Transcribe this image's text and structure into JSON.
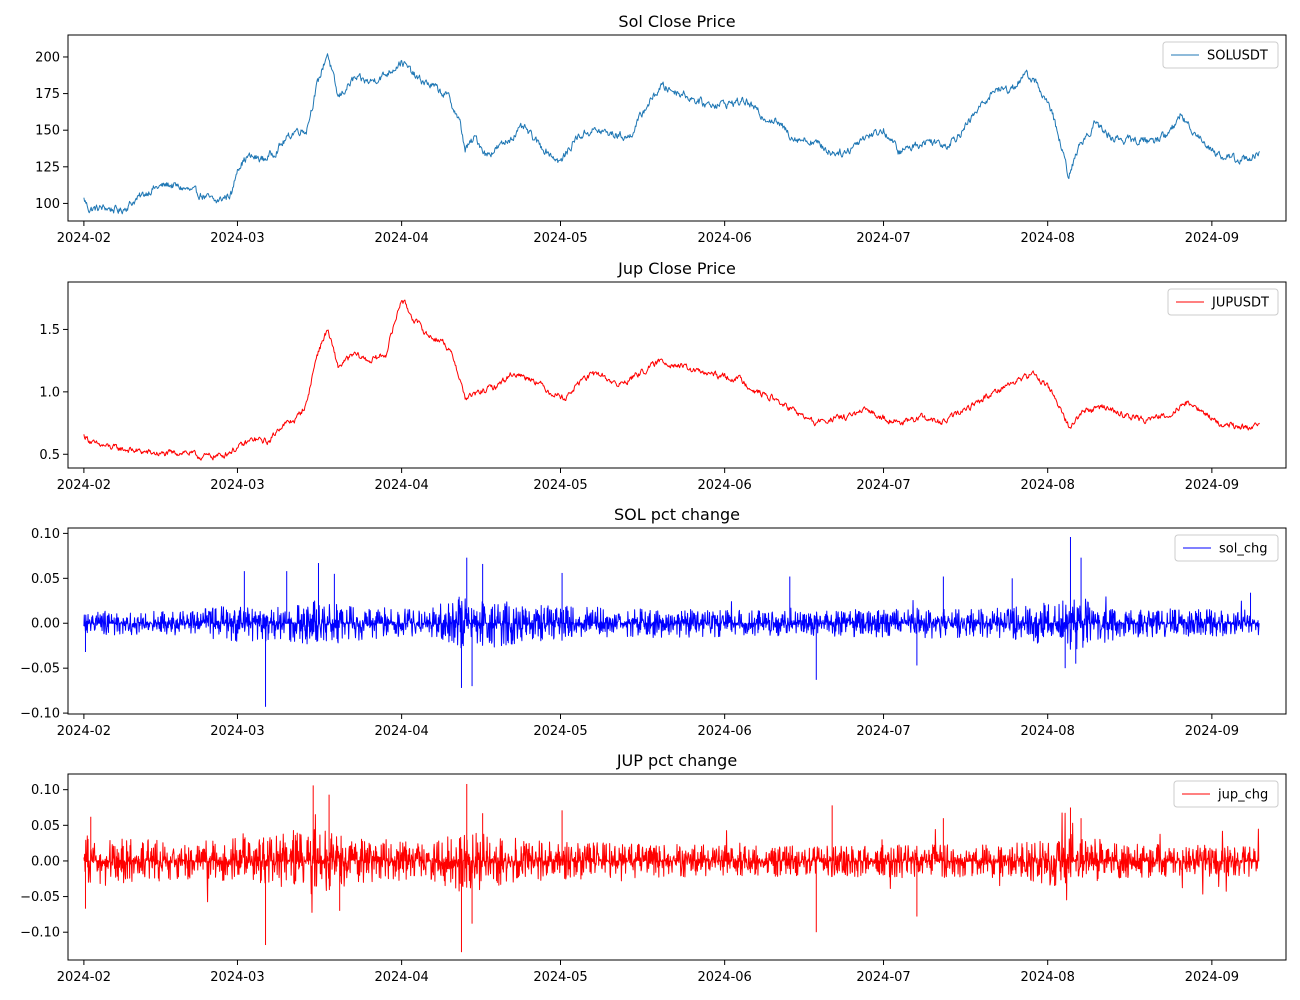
{
  "figure": {
    "background": "#ffffff"
  },
  "x_ticks": [
    "2024-02",
    "2024-03",
    "2024-04",
    "2024-05",
    "2024-06",
    "2024-07",
    "2024-08",
    "2024-09"
  ],
  "chart_data": [
    {
      "type": "line",
      "title": "Sol Close Price",
      "xlabel": "",
      "ylabel": "",
      "x_range": [
        "2024-01-29",
        "2024-09-15"
      ],
      "ylim": [
        88,
        215
      ],
      "yticks": [
        100,
        125,
        150,
        175,
        200
      ],
      "ytick_labels": [
        "100",
        "125",
        "150",
        "175",
        "200"
      ],
      "legend_position": "upper right",
      "grid": false,
      "series": [
        {
          "name": "SOLUSDT",
          "color": "#1f77b4",
          "noise": 2.2,
          "points": [
            [
              "2024-02-01",
              103
            ],
            [
              "2024-02-02",
              96
            ],
            [
              "2024-02-05",
              97
            ],
            [
              "2024-02-08",
              95
            ],
            [
              "2024-02-11",
              103
            ],
            [
              "2024-02-14",
              110
            ],
            [
              "2024-02-17",
              113
            ],
            [
              "2024-02-20",
              110
            ],
            [
              "2024-02-23",
              106
            ],
            [
              "2024-02-26",
              101
            ],
            [
              "2024-02-29",
              107
            ],
            [
              "2024-03-01",
              125
            ],
            [
              "2024-03-03",
              132
            ],
            [
              "2024-03-06",
              130
            ],
            [
              "2024-03-08",
              135
            ],
            [
              "2024-03-10",
              143
            ],
            [
              "2024-03-12",
              150
            ],
            [
              "2024-03-14",
              150
            ],
            [
              "2024-03-16",
              180
            ],
            [
              "2024-03-18",
              203
            ],
            [
              "2024-03-20",
              172
            ],
            [
              "2024-03-23",
              185
            ],
            [
              "2024-03-26",
              183
            ],
            [
              "2024-03-29",
              188
            ],
            [
              "2024-04-01",
              197
            ],
            [
              "2024-04-04",
              185
            ],
            [
              "2024-04-07",
              180
            ],
            [
              "2024-04-10",
              172
            ],
            [
              "2024-04-12",
              155
            ],
            [
              "2024-04-13",
              137
            ],
            [
              "2024-04-15",
              145
            ],
            [
              "2024-04-17",
              133
            ],
            [
              "2024-04-20",
              140
            ],
            [
              "2024-04-24",
              152
            ],
            [
              "2024-04-27",
              140
            ],
            [
              "2024-05-01",
              128
            ],
            [
              "2024-05-04",
              145
            ],
            [
              "2024-05-07",
              150
            ],
            [
              "2024-05-10",
              148
            ],
            [
              "2024-05-14",
              145
            ],
            [
              "2024-05-17",
              165
            ],
            [
              "2024-05-20",
              180
            ],
            [
              "2024-05-24",
              175
            ],
            [
              "2024-05-28",
              168
            ],
            [
              "2024-06-01",
              168
            ],
            [
              "2024-06-05",
              170
            ],
            [
              "2024-06-08",
              160
            ],
            [
              "2024-06-11",
              155
            ],
            [
              "2024-06-14",
              145
            ],
            [
              "2024-06-18",
              142
            ],
            [
              "2024-06-21",
              135
            ],
            [
              "2024-06-24",
              135
            ],
            [
              "2024-06-27",
              145
            ],
            [
              "2024-07-01",
              150
            ],
            [
              "2024-07-04",
              135
            ],
            [
              "2024-07-07",
              140
            ],
            [
              "2024-07-10",
              143
            ],
            [
              "2024-07-13",
              140
            ],
            [
              "2024-07-16",
              150
            ],
            [
              "2024-07-19",
              165
            ],
            [
              "2024-07-22",
              178
            ],
            [
              "2024-07-25",
              178
            ],
            [
              "2024-07-28",
              188
            ],
            [
              "2024-07-30",
              182
            ],
            [
              "2024-08-02",
              160
            ],
            [
              "2024-08-05",
              118
            ],
            [
              "2024-08-07",
              140
            ],
            [
              "2024-08-10",
              155
            ],
            [
              "2024-08-13",
              145
            ],
            [
              "2024-08-17",
              143
            ],
            [
              "2024-08-21",
              143
            ],
            [
              "2024-08-24",
              148
            ],
            [
              "2024-08-26",
              160
            ],
            [
              "2024-08-29",
              148
            ],
            [
              "2024-09-02",
              133
            ],
            [
              "2024-09-06",
              130
            ],
            [
              "2024-09-10",
              133
            ]
          ]
        }
      ]
    },
    {
      "type": "line",
      "title": "Jup Close Price",
      "xlabel": "",
      "ylabel": "",
      "x_range": [
        "2024-01-29",
        "2024-09-15"
      ],
      "ylim": [
        0.39,
        1.88
      ],
      "yticks": [
        0.5,
        1.0,
        1.5
      ],
      "ytick_labels": [
        "0.5",
        "1.0",
        "1.5"
      ],
      "legend_position": "upper right",
      "grid": false,
      "series": [
        {
          "name": "JUPUSDT",
          "color": "#ff0000",
          "noise": 0.02,
          "points": [
            [
              "2024-02-01",
              0.65
            ],
            [
              "2024-02-03",
              0.58
            ],
            [
              "2024-02-07",
              0.55
            ],
            [
              "2024-02-12",
              0.52
            ],
            [
              "2024-02-16",
              0.5
            ],
            [
              "2024-02-20",
              0.52
            ],
            [
              "2024-02-23",
              0.48
            ],
            [
              "2024-02-27",
              0.49
            ],
            [
              "2024-03-01",
              0.55
            ],
            [
              "2024-03-04",
              0.62
            ],
            [
              "2024-03-07",
              0.6
            ],
            [
              "2024-03-09",
              0.72
            ],
            [
              "2024-03-12",
              0.78
            ],
            [
              "2024-03-14",
              0.9
            ],
            [
              "2024-03-16",
              1.3
            ],
            [
              "2024-03-18",
              1.5
            ],
            [
              "2024-03-20",
              1.2
            ],
            [
              "2024-03-23",
              1.3
            ],
            [
              "2024-03-26",
              1.25
            ],
            [
              "2024-03-29",
              1.3
            ],
            [
              "2024-04-01",
              1.75
            ],
            [
              "2024-04-03",
              1.6
            ],
            [
              "2024-04-06",
              1.45
            ],
            [
              "2024-04-09",
              1.4
            ],
            [
              "2024-04-11",
              1.25
            ],
            [
              "2024-04-13",
              0.95
            ],
            [
              "2024-04-16",
              1.0
            ],
            [
              "2024-04-19",
              1.05
            ],
            [
              "2024-04-22",
              1.15
            ],
            [
              "2024-04-26",
              1.1
            ],
            [
              "2024-04-29",
              1.0
            ],
            [
              "2024-05-02",
              0.95
            ],
            [
              "2024-05-05",
              1.1
            ],
            [
              "2024-05-08",
              1.15
            ],
            [
              "2024-05-12",
              1.05
            ],
            [
              "2024-05-16",
              1.15
            ],
            [
              "2024-05-20",
              1.25
            ],
            [
              "2024-05-24",
              1.2
            ],
            [
              "2024-05-28",
              1.15
            ],
            [
              "2024-06-01",
              1.12
            ],
            [
              "2024-06-04",
              1.1
            ],
            [
              "2024-06-07",
              1.0
            ],
            [
              "2024-06-10",
              0.95
            ],
            [
              "2024-06-14",
              0.85
            ],
            [
              "2024-06-18",
              0.75
            ],
            [
              "2024-06-21",
              0.78
            ],
            [
              "2024-06-24",
              0.8
            ],
            [
              "2024-06-28",
              0.85
            ],
            [
              "2024-07-02",
              0.78
            ],
            [
              "2024-07-05",
              0.75
            ],
            [
              "2024-07-08",
              0.8
            ],
            [
              "2024-07-12",
              0.75
            ],
            [
              "2024-07-16",
              0.85
            ],
            [
              "2024-07-20",
              0.95
            ],
            [
              "2024-07-24",
              1.05
            ],
            [
              "2024-07-27",
              1.1
            ],
            [
              "2024-07-29",
              1.15
            ],
            [
              "2024-08-01",
              1.05
            ],
            [
              "2024-08-03",
              0.9
            ],
            [
              "2024-08-05",
              0.72
            ],
            [
              "2024-08-08",
              0.85
            ],
            [
              "2024-08-12",
              0.88
            ],
            [
              "2024-08-16",
              0.8
            ],
            [
              "2024-08-20",
              0.78
            ],
            [
              "2024-08-24",
              0.82
            ],
            [
              "2024-08-27",
              0.92
            ],
            [
              "2024-08-30",
              0.85
            ],
            [
              "2024-09-02",
              0.75
            ],
            [
              "2024-09-06",
              0.72
            ],
            [
              "2024-09-10",
              0.72
            ]
          ]
        }
      ]
    },
    {
      "type": "line",
      "title": "SOL pct change",
      "xlabel": "",
      "ylabel": "",
      "x_range": [
        "2024-01-29",
        "2024-09-15"
      ],
      "ylim": [
        -0.101,
        0.106
      ],
      "yticks": [
        -0.1,
        -0.05,
        0.0,
        0.05,
        0.1
      ],
      "ytick_labels": [
        "−0.10",
        "−0.05",
        "0.00",
        "0.05",
        "0.10"
      ],
      "legend_position": "upper right",
      "grid": false,
      "series": [
        {
          "name": "sol_chg",
          "color": "#0000ff",
          "x_start": "2024-02-01",
          "x_end": "2024-09-10",
          "base_amplitude": 0.007,
          "volatility": [
            [
              "2024-02-01",
              0.8
            ],
            [
              "2024-02-20",
              0.8
            ],
            [
              "2024-03-01",
              1.3
            ],
            [
              "2024-03-10",
              1.1
            ],
            [
              "2024-03-15",
              1.6
            ],
            [
              "2024-03-25",
              1.1
            ],
            [
              "2024-04-05",
              0.9
            ],
            [
              "2024-04-13",
              1.9
            ],
            [
              "2024-04-25",
              1.2
            ],
            [
              "2024-05-15",
              1.0
            ],
            [
              "2024-06-15",
              0.8
            ],
            [
              "2024-07-01",
              1.0
            ],
            [
              "2024-07-25",
              1.0
            ],
            [
              "2024-08-05",
              1.9
            ],
            [
              "2024-08-15",
              1.0
            ],
            [
              "2024-09-10",
              0.9
            ]
          ],
          "spikes": [
            [
              "2024-02-01",
              -0.032
            ],
            [
              "2024-03-02",
              0.058
            ],
            [
              "2024-03-06",
              -0.093
            ],
            [
              "2024-03-10",
              0.058
            ],
            [
              "2024-03-16",
              0.067
            ],
            [
              "2024-03-19",
              0.055
            ],
            [
              "2024-04-12",
              -0.072
            ],
            [
              "2024-04-13",
              0.073
            ],
            [
              "2024-04-14",
              -0.07
            ],
            [
              "2024-04-16",
              0.066
            ],
            [
              "2024-05-01",
              0.056
            ],
            [
              "2024-06-18",
              -0.063
            ],
            [
              "2024-06-13",
              0.052
            ],
            [
              "2024-07-07",
              -0.047
            ],
            [
              "2024-07-12",
              0.052
            ],
            [
              "2024-07-25",
              0.05
            ],
            [
              "2024-08-04",
              -0.05
            ],
            [
              "2024-08-05",
              0.096
            ],
            [
              "2024-08-06",
              -0.045
            ],
            [
              "2024-08-07",
              0.073
            ],
            [
              "2024-09-08",
              0.034
            ]
          ]
        }
      ]
    },
    {
      "type": "line",
      "title": "JUP pct change",
      "xlabel": "",
      "ylabel": "",
      "x_range": [
        "2024-01-29",
        "2024-09-15"
      ],
      "ylim": [
        -0.139,
        0.122
      ],
      "yticks": [
        -0.1,
        -0.05,
        0.0,
        0.05,
        0.1
      ],
      "ytick_labels": [
        "−0.10",
        "−0.05",
        "0.00",
        "0.05",
        "0.10"
      ],
      "legend_position": "upper right",
      "grid": false,
      "series": [
        {
          "name": "jup_chg",
          "color": "#ff0000",
          "x_start": "2024-02-01",
          "x_end": "2024-09-10",
          "base_amplitude": 0.011,
          "volatility": [
            [
              "2024-02-01",
              1.4
            ],
            [
              "2024-02-20",
              1.0
            ],
            [
              "2024-03-05",
              1.3
            ],
            [
              "2024-03-15",
              1.8
            ],
            [
              "2024-03-25",
              1.2
            ],
            [
              "2024-04-05",
              1.1
            ],
            [
              "2024-04-13",
              1.7
            ],
            [
              "2024-04-25",
              1.1
            ],
            [
              "2024-05-15",
              0.9
            ],
            [
              "2024-06-15",
              0.8
            ],
            [
              "2024-07-01",
              0.9
            ],
            [
              "2024-07-25",
              0.9
            ],
            [
              "2024-08-05",
              1.5
            ],
            [
              "2024-08-15",
              0.9
            ],
            [
              "2024-09-10",
              0.8
            ]
          ],
          "spikes": [
            [
              "2024-02-01",
              -0.067
            ],
            [
              "2024-02-02",
              0.062
            ],
            [
              "2024-03-06",
              -0.118
            ],
            [
              "2024-03-15",
              0.106
            ],
            [
              "2024-03-18",
              0.093
            ],
            [
              "2024-03-20",
              -0.07
            ],
            [
              "2024-04-12",
              -0.128
            ],
            [
              "2024-04-13",
              0.108
            ],
            [
              "2024-04-14",
              -0.088
            ],
            [
              "2024-04-16",
              0.067
            ],
            [
              "2024-05-01",
              0.071
            ],
            [
              "2024-06-18",
              -0.1
            ],
            [
              "2024-06-21",
              0.078
            ],
            [
              "2024-07-07",
              -0.078
            ],
            [
              "2024-07-12",
              0.06
            ],
            [
              "2024-08-05",
              0.075
            ],
            [
              "2024-08-07",
              0.06
            ],
            [
              "2024-08-02",
              -0.035
            ]
          ]
        }
      ]
    }
  ]
}
